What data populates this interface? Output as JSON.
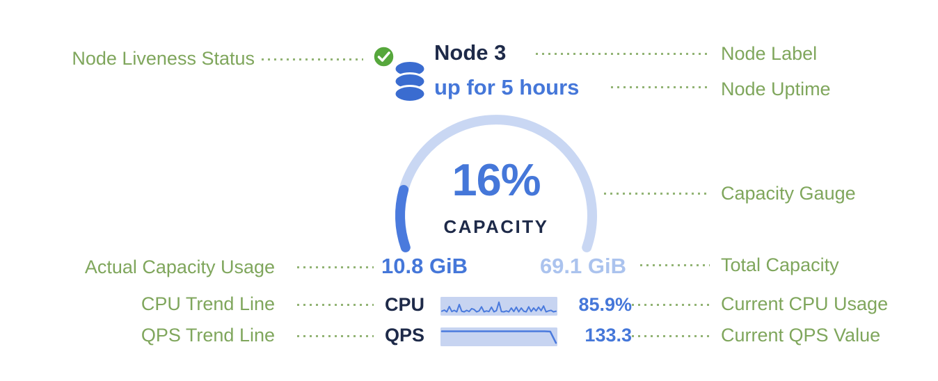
{
  "node": {
    "label": "Node 3",
    "uptime": "up for 5 hours",
    "capacity_percent_label": "16%",
    "capacity_caption": "CAPACITY",
    "used_capacity": "10.8 GiB",
    "total_capacity": "69.1 GiB",
    "cpu_label": "CPU",
    "cpu_value": "85.9%",
    "qps_label": "QPS",
    "qps_value": "133.3"
  },
  "annotations": {
    "node_liveness_status": "Node Liveness Status",
    "node_label": "Node Label",
    "node_uptime": "Node Uptime",
    "capacity_gauge": "Capacity Gauge",
    "actual_capacity_usage": "Actual Capacity Usage",
    "total_capacity": "Total Capacity",
    "cpu_trend_line": "CPU Trend Line",
    "current_cpu_usage": "Current CPU Usage",
    "qps_trend_line": "QPS Trend Line",
    "current_qps_value": "Current QPS Value"
  },
  "icons": {
    "liveness": "check-circle-icon",
    "node": "database-icon"
  },
  "colors": {
    "green": "#7fa65c",
    "blue": "#4577d9",
    "navy": "#1e2a49",
    "light_blue": "#abc3ee",
    "gauge_track": "#c9d7f3",
    "gauge_fill": "#4a7add",
    "spark_bg": "#c7d4f1",
    "spark_line": "#4a7add",
    "liveness_green": "#56a73c",
    "db_blue": "#3a6cd0"
  },
  "chart_data": [
    {
      "type": "gauge",
      "title": "CAPACITY",
      "percent": 16,
      "used_gib": 10.8,
      "total_gib": 69.1,
      "arc_span_degrees": 220,
      "track_color": "#c9d7f3",
      "fill_color": "#4a7add"
    },
    {
      "type": "line",
      "name": "CPU",
      "current": "85.9%",
      "ylim": [
        0,
        100
      ],
      "values": [
        16,
        24,
        12,
        48,
        14,
        22,
        12,
        62,
        16,
        12,
        22,
        14,
        34,
        28,
        12,
        18,
        46,
        12,
        18,
        14,
        44,
        12,
        20,
        78,
        14,
        12,
        18,
        12,
        38,
        14,
        44,
        12,
        38,
        16,
        12,
        46,
        14,
        38,
        18,
        44,
        20,
        52,
        12,
        18,
        22,
        12,
        16
      ]
    },
    {
      "type": "line",
      "name": "QPS",
      "current": "133.3",
      "ylim": [
        0,
        100
      ],
      "values": [
        88,
        88,
        88,
        88,
        88,
        88,
        88,
        88,
        88,
        88,
        88,
        88,
        88,
        88,
        88,
        88,
        88,
        88,
        88,
        86,
        8
      ]
    }
  ]
}
